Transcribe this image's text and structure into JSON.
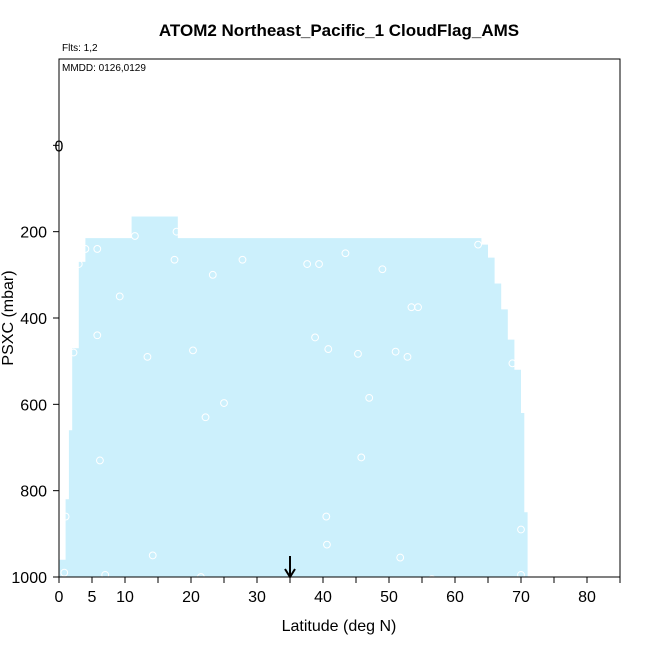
{
  "chart_data": {
    "type": "area",
    "title": "ATOM2 Northeast_Pacific_1 CloudFlag_AMS",
    "flights_label": "Flts: 1,2",
    "dates_label": "MMDD: 0126,0129",
    "xlabel": "Latitude (deg N)",
    "ylabel": "PSXC (mbar)",
    "xlim": [
      0,
      85
    ],
    "ylim": [
      1000,
      -200
    ],
    "x_ticks": [
      0,
      5,
      10,
      15,
      20,
      25,
      30,
      35,
      40,
      45,
      50,
      55,
      60,
      65,
      70,
      75,
      80,
      85
    ],
    "x_tick_labels": [
      "0",
      "5",
      "10",
      "",
      "20",
      "",
      "30",
      "",
      "40",
      "",
      "50",
      "",
      "60",
      "",
      "70",
      "",
      "80",
      ""
    ],
    "y_ticks": [
      0,
      200,
      400,
      600,
      800,
      1000
    ],
    "y_tick_labels": [
      "0",
      "200",
      "400",
      "600",
      "800",
      "1000"
    ],
    "fill_color": "#ccf0fc",
    "marker_color": "#ffffff",
    "arrow_x": 35,
    "top_marker": {
      "x": 0,
      "y_from": -140,
      "y_to": 0,
      "label": "0"
    },
    "coverage_envelope": {
      "x": [
        0,
        0.5,
        1,
        1.5,
        2,
        3,
        4,
        5,
        10,
        11,
        17.9,
        18,
        63.5,
        64,
        65,
        66,
        67,
        68,
        69,
        70,
        70.5,
        71
      ],
      "y_top": [
        960,
        960,
        820,
        660,
        470,
        270,
        215,
        215,
        215,
        165,
        165,
        215,
        215,
        230,
        260,
        320,
        380,
        450,
        520,
        620,
        850,
        960
      ]
    },
    "points": [
      {
        "x": 1.0,
        "y": 860
      },
      {
        "x": 0.8,
        "y": 990
      },
      {
        "x": 2.2,
        "y": 480
      },
      {
        "x": 3.0,
        "y": 275
      },
      {
        "x": 4.0,
        "y": 240
      },
      {
        "x": 5.8,
        "y": 240
      },
      {
        "x": 5.8,
        "y": 440
      },
      {
        "x": 6.2,
        "y": 730
      },
      {
        "x": 7.0,
        "y": 995
      },
      {
        "x": 9.2,
        "y": 350
      },
      {
        "x": 11.5,
        "y": 210
      },
      {
        "x": 13.4,
        "y": 490
      },
      {
        "x": 14.2,
        "y": 950
      },
      {
        "x": 17.5,
        "y": 265
      },
      {
        "x": 17.8,
        "y": 200
      },
      {
        "x": 20.3,
        "y": 475
      },
      {
        "x": 21.5,
        "y": 1000
      },
      {
        "x": 22.2,
        "y": 630
      },
      {
        "x": 23.3,
        "y": 300
      },
      {
        "x": 25.0,
        "y": 597
      },
      {
        "x": 27.8,
        "y": 265
      },
      {
        "x": 37.6,
        "y": 275
      },
      {
        "x": 38.8,
        "y": 445
      },
      {
        "x": 39.4,
        "y": 275
      },
      {
        "x": 40.5,
        "y": 860
      },
      {
        "x": 40.6,
        "y": 925
      },
      {
        "x": 40.8,
        "y": 472
      },
      {
        "x": 43.4,
        "y": 250
      },
      {
        "x": 45.3,
        "y": 483
      },
      {
        "x": 45.8,
        "y": 723
      },
      {
        "x": 47.0,
        "y": 585
      },
      {
        "x": 49.0,
        "y": 287
      },
      {
        "x": 51.0,
        "y": 478
      },
      {
        "x": 51.7,
        "y": 955
      },
      {
        "x": 52.1,
        "y": 1010
      },
      {
        "x": 52.8,
        "y": 490
      },
      {
        "x": 53.4,
        "y": 375
      },
      {
        "x": 54.4,
        "y": 375
      },
      {
        "x": 56.5,
        "y": 1005
      },
      {
        "x": 63.5,
        "y": 230
      },
      {
        "x": 68.7,
        "y": 505
      },
      {
        "x": 70.0,
        "y": 890
      },
      {
        "x": 70.0,
        "y": 995
      }
    ]
  }
}
